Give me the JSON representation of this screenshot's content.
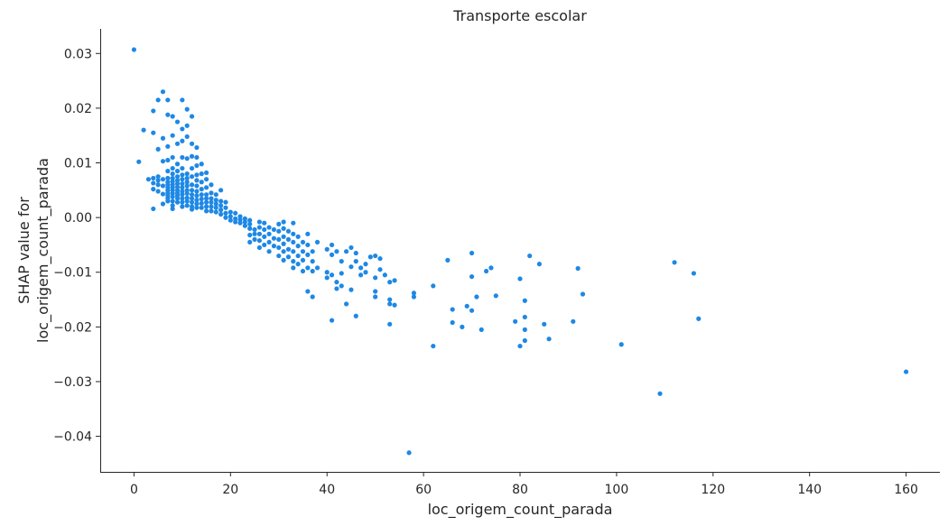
{
  "chart_data": {
    "type": "scatter",
    "title": "Transporte escolar",
    "xlabel": "loc_origem_count_parada",
    "ylabel_lines": [
      "SHAP value for",
      "loc_origem_count_parada"
    ],
    "xlim": [
      -7,
      167
    ],
    "ylim": [
      -0.0465,
      0.0345
    ],
    "x_ticks": [
      0,
      20,
      40,
      60,
      80,
      100,
      120,
      140,
      160
    ],
    "x_tick_labels": [
      "0",
      "20",
      "40",
      "60",
      "80",
      "100",
      "120",
      "140",
      "160"
    ],
    "y_ticks": [
      0.03,
      0.02,
      0.01,
      0.0,
      -0.01,
      -0.02,
      -0.03,
      -0.04
    ],
    "y_tick_labels": [
      "0.03",
      "0.02",
      "0.01",
      "0.00",
      "−0.01",
      "−0.02",
      "−0.03",
      "−0.04"
    ],
    "grid": false,
    "legend": "none",
    "color": "#1e88e5",
    "points": [
      [
        0,
        0.0307
      ],
      [
        1,
        0.0102
      ],
      [
        2,
        0.016
      ],
      [
        3,
        0.007
      ],
      [
        4,
        0.0195
      ],
      [
        4,
        0.0155
      ],
      [
        4,
        0.0072
      ],
      [
        4,
        0.0063
      ],
      [
        4,
        0.0052
      ],
      [
        4,
        0.0016
      ],
      [
        5,
        0.0215
      ],
      [
        5,
        0.0125
      ],
      [
        5,
        0.0075
      ],
      [
        5,
        0.0068
      ],
      [
        5,
        0.006
      ],
      [
        5,
        0.0048
      ],
      [
        6,
        0.023
      ],
      [
        6,
        0.0145
      ],
      [
        6,
        0.0103
      ],
      [
        6,
        0.007
      ],
      [
        6,
        0.0058
      ],
      [
        6,
        0.0043
      ],
      [
        6,
        0.0025
      ],
      [
        7,
        0.0215
      ],
      [
        7,
        0.0188
      ],
      [
        7,
        0.013
      ],
      [
        7,
        0.0105
      ],
      [
        7,
        0.0085
      ],
      [
        7,
        0.0072
      ],
      [
        7,
        0.0065
      ],
      [
        7,
        0.006
      ],
      [
        7,
        0.0055
      ],
      [
        7,
        0.005
      ],
      [
        7,
        0.0045
      ],
      [
        7,
        0.004
      ],
      [
        7,
        0.0035
      ],
      [
        7,
        0.003
      ],
      [
        8,
        0.0185
      ],
      [
        8,
        0.015
      ],
      [
        8,
        0.011
      ],
      [
        8,
        0.009
      ],
      [
        8,
        0.008
      ],
      [
        8,
        0.0072
      ],
      [
        8,
        0.0066
      ],
      [
        8,
        0.006
      ],
      [
        8,
        0.0055
      ],
      [
        8,
        0.005
      ],
      [
        8,
        0.0044
      ],
      [
        8,
        0.0038
      ],
      [
        8,
        0.003
      ],
      [
        8,
        0.0022
      ],
      [
        8,
        0.0016
      ],
      [
        9,
        0.0175
      ],
      [
        9,
        0.0135
      ],
      [
        9,
        0.0098
      ],
      [
        9,
        0.0085
      ],
      [
        9,
        0.0075
      ],
      [
        9,
        0.0068
      ],
      [
        9,
        0.0062
      ],
      [
        9,
        0.0056
      ],
      [
        9,
        0.005
      ],
      [
        9,
        0.0045
      ],
      [
        9,
        0.004
      ],
      [
        9,
        0.0035
      ],
      [
        9,
        0.0028
      ],
      [
        10,
        0.0215
      ],
      [
        10,
        0.0162
      ],
      [
        10,
        0.014
      ],
      [
        10,
        0.011
      ],
      [
        10,
        0.009
      ],
      [
        10,
        0.0078
      ],
      [
        10,
        0.007
      ],
      [
        10,
        0.0062
      ],
      [
        10,
        0.0055
      ],
      [
        10,
        0.0048
      ],
      [
        10,
        0.0042
      ],
      [
        10,
        0.0035
      ],
      [
        10,
        0.0028
      ],
      [
        10,
        0.002
      ],
      [
        11,
        0.0198
      ],
      [
        11,
        0.0168
      ],
      [
        11,
        0.0148
      ],
      [
        11,
        0.0108
      ],
      [
        11,
        0.008
      ],
      [
        11,
        0.0072
      ],
      [
        11,
        0.0065
      ],
      [
        11,
        0.0058
      ],
      [
        11,
        0.005
      ],
      [
        11,
        0.0044
      ],
      [
        11,
        0.0036
      ],
      [
        11,
        0.003
      ],
      [
        11,
        0.0022
      ],
      [
        12,
        0.0185
      ],
      [
        12,
        0.0135
      ],
      [
        12,
        0.0112
      ],
      [
        12,
        0.009
      ],
      [
        12,
        0.0075
      ],
      [
        12,
        0.006
      ],
      [
        12,
        0.005
      ],
      [
        12,
        0.0042
      ],
      [
        12,
        0.0035
      ],
      [
        12,
        0.0028
      ],
      [
        12,
        0.002
      ],
      [
        12,
        0.0015
      ],
      [
        13,
        0.0128
      ],
      [
        13,
        0.011
      ],
      [
        13,
        0.0095
      ],
      [
        13,
        0.0078
      ],
      [
        13,
        0.0068
      ],
      [
        13,
        0.0058
      ],
      [
        13,
        0.0048
      ],
      [
        13,
        0.004
      ],
      [
        13,
        0.0032
      ],
      [
        13,
        0.0025
      ],
      [
        13,
        0.0018
      ],
      [
        14,
        0.0098
      ],
      [
        14,
        0.008
      ],
      [
        14,
        0.0065
      ],
      [
        14,
        0.0052
      ],
      [
        14,
        0.0042
      ],
      [
        14,
        0.0034
      ],
      [
        14,
        0.0026
      ],
      [
        14,
        0.0018
      ],
      [
        15,
        0.0082
      ],
      [
        15,
        0.007
      ],
      [
        15,
        0.0055
      ],
      [
        15,
        0.0042
      ],
      [
        15,
        0.0035
      ],
      [
        15,
        0.0028
      ],
      [
        15,
        0.002
      ],
      [
        15,
        0.0012
      ],
      [
        16,
        0.006
      ],
      [
        16,
        0.0045
      ],
      [
        16,
        0.0035
      ],
      [
        16,
        0.0028
      ],
      [
        16,
        0.002
      ],
      [
        16,
        0.0012
      ],
      [
        17,
        0.0042
      ],
      [
        17,
        0.0032
      ],
      [
        17,
        0.0025
      ],
      [
        17,
        0.0018
      ],
      [
        17,
        0.001
      ],
      [
        18,
        0.005
      ],
      [
        18,
        0.003
      ],
      [
        18,
        0.0022
      ],
      [
        18,
        0.0014
      ],
      [
        18,
        0.0006
      ],
      [
        19,
        0.0028
      ],
      [
        19,
        0.0018
      ],
      [
        19,
        0.0008
      ],
      [
        19,
        0.0
      ],
      [
        20,
        0.001
      ],
      [
        20,
        0.0002
      ],
      [
        20,
        -0.0005
      ],
      [
        21,
        0.0008
      ],
      [
        21,
        -0.0002
      ],
      [
        21,
        -0.0008
      ],
      [
        22,
        0.0002
      ],
      [
        22,
        -0.0004
      ],
      [
        22,
        -0.001
      ],
      [
        23,
        -0.0002
      ],
      [
        23,
        -0.0008
      ],
      [
        23,
        -0.0015
      ],
      [
        24,
        -0.0005
      ],
      [
        24,
        -0.0012
      ],
      [
        24,
        -0.002
      ],
      [
        24,
        -0.0032
      ],
      [
        24,
        -0.0045
      ],
      [
        25,
        -0.0022
      ],
      [
        25,
        -0.003
      ],
      [
        25,
        -0.004
      ],
      [
        26,
        -0.0008
      ],
      [
        26,
        -0.0018
      ],
      [
        26,
        -0.003
      ],
      [
        26,
        -0.0042
      ],
      [
        26,
        -0.0055
      ],
      [
        27,
        -0.001
      ],
      [
        27,
        -0.0022
      ],
      [
        27,
        -0.0035
      ],
      [
        27,
        -0.005
      ],
      [
        28,
        -0.0018
      ],
      [
        28,
        -0.003
      ],
      [
        28,
        -0.0045
      ],
      [
        28,
        -0.0062
      ],
      [
        29,
        -0.0022
      ],
      [
        29,
        -0.0038
      ],
      [
        29,
        -0.0052
      ],
      [
        30,
        -0.0012
      ],
      [
        30,
        -0.0025
      ],
      [
        30,
        -0.004
      ],
      [
        30,
        -0.0055
      ],
      [
        30,
        -0.007
      ],
      [
        31,
        -0.0008
      ],
      [
        31,
        -0.002
      ],
      [
        31,
        -0.0035
      ],
      [
        31,
        -0.0048
      ],
      [
        31,
        -0.0062
      ],
      [
        31,
        -0.0078
      ],
      [
        32,
        -0.0025
      ],
      [
        32,
        -0.004
      ],
      [
        32,
        -0.0058
      ],
      [
        32,
        -0.0072
      ],
      [
        33,
        -0.001
      ],
      [
        33,
        -0.003
      ],
      [
        33,
        -0.0045
      ],
      [
        33,
        -0.0062
      ],
      [
        33,
        -0.008
      ],
      [
        33,
        -0.0092
      ],
      [
        34,
        -0.0035
      ],
      [
        34,
        -0.0052
      ],
      [
        34,
        -0.007
      ],
      [
        34,
        -0.0085
      ],
      [
        35,
        -0.0045
      ],
      [
        35,
        -0.0062
      ],
      [
        35,
        -0.0078
      ],
      [
        35,
        -0.0098
      ],
      [
        36,
        -0.003
      ],
      [
        36,
        -0.005
      ],
      [
        36,
        -0.0068
      ],
      [
        36,
        -0.0092
      ],
      [
        36,
        -0.0135
      ],
      [
        37,
        -0.0062
      ],
      [
        37,
        -0.008
      ],
      [
        37,
        -0.0098
      ],
      [
        37,
        -0.0145
      ],
      [
        38,
        -0.0045
      ],
      [
        38,
        -0.0092
      ],
      [
        40,
        -0.0058
      ],
      [
        40,
        -0.01
      ],
      [
        40,
        -0.011
      ],
      [
        41,
        -0.005
      ],
      [
        41,
        -0.0068
      ],
      [
        41,
        -0.0105
      ],
      [
        41,
        -0.0188
      ],
      [
        42,
        -0.0062
      ],
      [
        42,
        -0.0118
      ],
      [
        42,
        -0.013
      ],
      [
        43,
        -0.008
      ],
      [
        43,
        -0.0102
      ],
      [
        43,
        -0.0125
      ],
      [
        44,
        -0.0062
      ],
      [
        44,
        -0.0158
      ],
      [
        45,
        -0.0055
      ],
      [
        45,
        -0.009
      ],
      [
        45,
        -0.0132
      ],
      [
        46,
        -0.0065
      ],
      [
        46,
        -0.008
      ],
      [
        46,
        -0.018
      ],
      [
        47,
        -0.0092
      ],
      [
        47,
        -0.0105
      ],
      [
        48,
        -0.0085
      ],
      [
        48,
        -0.01
      ],
      [
        49,
        -0.0072
      ],
      [
        50,
        -0.007
      ],
      [
        50,
        -0.011
      ],
      [
        50,
        -0.0135
      ],
      [
        50,
        -0.0145
      ],
      [
        51,
        -0.0075
      ],
      [
        51,
        -0.0095
      ],
      [
        52,
        -0.0105
      ],
      [
        53,
        -0.0118
      ],
      [
        53,
        -0.015
      ],
      [
        53,
        -0.0158
      ],
      [
        53,
        -0.0195
      ],
      [
        54,
        -0.0115
      ],
      [
        54,
        -0.016
      ],
      [
        57,
        -0.043
      ],
      [
        58,
        -0.0138
      ],
      [
        58,
        -0.0145
      ],
      [
        62,
        -0.0125
      ],
      [
        62,
        -0.0235
      ],
      [
        65,
        -0.0078
      ],
      [
        66,
        -0.0168
      ],
      [
        66,
        -0.0192
      ],
      [
        68,
        -0.02
      ],
      [
        69,
        -0.0162
      ],
      [
        70,
        -0.0065
      ],
      [
        70,
        -0.0108
      ],
      [
        70,
        -0.017
      ],
      [
        71,
        -0.0145
      ],
      [
        72,
        -0.0205
      ],
      [
        73,
        -0.0098
      ],
      [
        74,
        -0.0092
      ],
      [
        75,
        -0.0143
      ],
      [
        79,
        -0.019
      ],
      [
        80,
        -0.0112
      ],
      [
        80,
        -0.0235
      ],
      [
        81,
        -0.0152
      ],
      [
        81,
        -0.0182
      ],
      [
        81,
        -0.0205
      ],
      [
        81,
        -0.0225
      ],
      [
        82,
        -0.007
      ],
      [
        84,
        -0.0085
      ],
      [
        85,
        -0.0195
      ],
      [
        86,
        -0.0222
      ],
      [
        91,
        -0.019
      ],
      [
        92,
        -0.0093
      ],
      [
        93,
        -0.014
      ],
      [
        101,
        -0.0232
      ],
      [
        109,
        -0.0322
      ],
      [
        112,
        -0.0082
      ],
      [
        116,
        -0.0102
      ],
      [
        117,
        -0.0185
      ],
      [
        160,
        -0.0282
      ]
    ]
  }
}
